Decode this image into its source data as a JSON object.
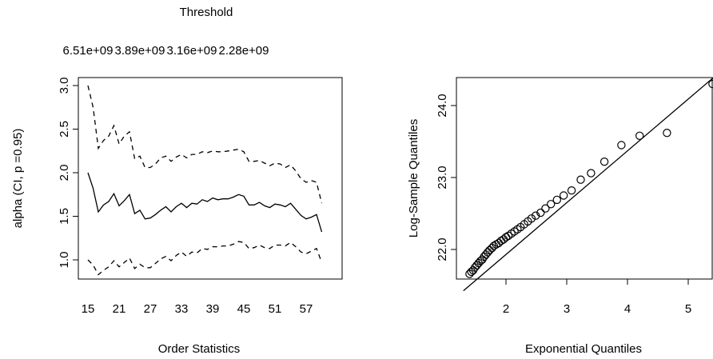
{
  "chart_data": [
    {
      "type": "line",
      "panel": "left",
      "top_axis_title": "Threshold",
      "top_tick_labels": [
        "6.51e+09",
        "3.89e+09",
        "3.16e+09",
        "2.28e+09"
      ],
      "top_tick_x": [
        15,
        25,
        35,
        45
      ],
      "xlabel": "Order Statistics",
      "ylabel": "alpha (CI, p =0.95)",
      "xlim": [
        15,
        60
      ],
      "ylim": [
        0.85,
        3.0
      ],
      "x_ticks": [
        15,
        21,
        27,
        33,
        39,
        45,
        51,
        57
      ],
      "y_ticks": [
        1.0,
        1.5,
        2.0,
        2.5,
        3.0
      ],
      "y_tick_labels": [
        "1.0",
        "1.5",
        "2.0",
        "2.5",
        "3.0"
      ],
      "x": [
        15,
        16,
        17,
        18,
        19,
        20,
        21,
        22,
        23,
        24,
        25,
        26,
        27,
        28,
        29,
        30,
        31,
        32,
        33,
        34,
        35,
        36,
        37,
        38,
        39,
        40,
        41,
        42,
        43,
        44,
        45,
        46,
        47,
        48,
        49,
        50,
        51,
        52,
        53,
        54,
        55,
        56,
        57,
        58,
        59,
        60
      ],
      "series": [
        {
          "role": "estimate",
          "line_style": "solid",
          "values": [
            2.0,
            1.82,
            1.55,
            1.63,
            1.67,
            1.76,
            1.62,
            1.68,
            1.75,
            1.53,
            1.57,
            1.47,
            1.48,
            1.52,
            1.57,
            1.61,
            1.55,
            1.61,
            1.65,
            1.6,
            1.65,
            1.64,
            1.69,
            1.67,
            1.71,
            1.69,
            1.7,
            1.7,
            1.72,
            1.75,
            1.73,
            1.63,
            1.63,
            1.66,
            1.62,
            1.6,
            1.64,
            1.63,
            1.61,
            1.65,
            1.58,
            1.51,
            1.47,
            1.49,
            1.52,
            1.32
          ]
        },
        {
          "role": "upper",
          "line_style": "dashed",
          "values": [
            3.0,
            2.75,
            2.28,
            2.37,
            2.42,
            2.54,
            2.33,
            2.42,
            2.47,
            2.16,
            2.19,
            2.06,
            2.06,
            2.1,
            2.17,
            2.19,
            2.13,
            2.18,
            2.21,
            2.17,
            2.21,
            2.21,
            2.24,
            2.23,
            2.25,
            2.24,
            2.24,
            2.25,
            2.26,
            2.27,
            2.24,
            2.13,
            2.13,
            2.14,
            2.11,
            2.08,
            2.11,
            2.1,
            2.06,
            2.09,
            2.02,
            1.93,
            1.89,
            1.91,
            1.89,
            1.65
          ]
        },
        {
          "role": "lower",
          "line_style": "dashed",
          "values": [
            1.0,
            0.94,
            0.83,
            0.88,
            0.92,
            0.99,
            0.92,
            0.97,
            1.02,
            0.9,
            0.95,
            0.91,
            0.91,
            0.96,
            1.01,
            1.04,
            0.99,
            1.05,
            1.09,
            1.04,
            1.09,
            1.08,
            1.13,
            1.12,
            1.15,
            1.15,
            1.16,
            1.16,
            1.18,
            1.21,
            1.2,
            1.13,
            1.14,
            1.17,
            1.14,
            1.13,
            1.17,
            1.17,
            1.16,
            1.2,
            1.15,
            1.09,
            1.07,
            1.1,
            1.13,
            0.97
          ]
        }
      ]
    },
    {
      "type": "scatter",
      "panel": "right",
      "xlabel": "Exponential Quantiles",
      "ylabel": "Log-Sample Quantiles",
      "xlim": [
        1.3,
        5.45
      ],
      "ylim": [
        21.6,
        24.4
      ],
      "x_ticks": [
        2,
        3,
        4,
        5
      ],
      "y_ticks": [
        22.0,
        23.0,
        24.0
      ],
      "y_tick_labels": [
        "22.0",
        "23.0",
        "24.0"
      ],
      "points": [
        [
          1.4,
          21.66
        ],
        [
          1.43,
          21.69
        ],
        [
          1.46,
          21.71
        ],
        [
          1.49,
          21.75
        ],
        [
          1.52,
          21.78
        ],
        [
          1.55,
          21.81
        ],
        [
          1.58,
          21.84
        ],
        [
          1.61,
          21.86
        ],
        [
          1.64,
          21.9
        ],
        [
          1.67,
          21.93
        ],
        [
          1.7,
          21.96
        ],
        [
          1.73,
          21.99
        ],
        [
          1.77,
          22.02
        ],
        [
          1.8,
          22.05
        ],
        [
          1.84,
          22.07
        ],
        [
          1.88,
          22.09
        ],
        [
          1.92,
          22.12
        ],
        [
          1.96,
          22.14
        ],
        [
          2.0,
          22.17
        ],
        [
          2.04,
          22.19
        ],
        [
          2.09,
          22.22
        ],
        [
          2.14,
          22.25
        ],
        [
          2.19,
          22.28
        ],
        [
          2.24,
          22.31
        ],
        [
          2.3,
          22.35
        ],
        [
          2.36,
          22.39
        ],
        [
          2.42,
          22.43
        ],
        [
          2.49,
          22.47
        ],
        [
          2.57,
          22.51
        ],
        [
          2.65,
          22.57
        ],
        [
          2.74,
          22.63
        ],
        [
          2.84,
          22.69
        ],
        [
          2.95,
          22.75
        ],
        [
          3.08,
          22.82
        ],
        [
          3.23,
          22.97
        ],
        [
          3.4,
          23.06
        ],
        [
          3.62,
          23.22
        ],
        [
          3.9,
          23.45
        ],
        [
          4.2,
          23.58
        ],
        [
          4.65,
          23.62
        ],
        [
          5.4,
          24.3
        ]
      ],
      "reference_line": {
        "intercept": 20.49,
        "slope": 0.72
      }
    }
  ]
}
